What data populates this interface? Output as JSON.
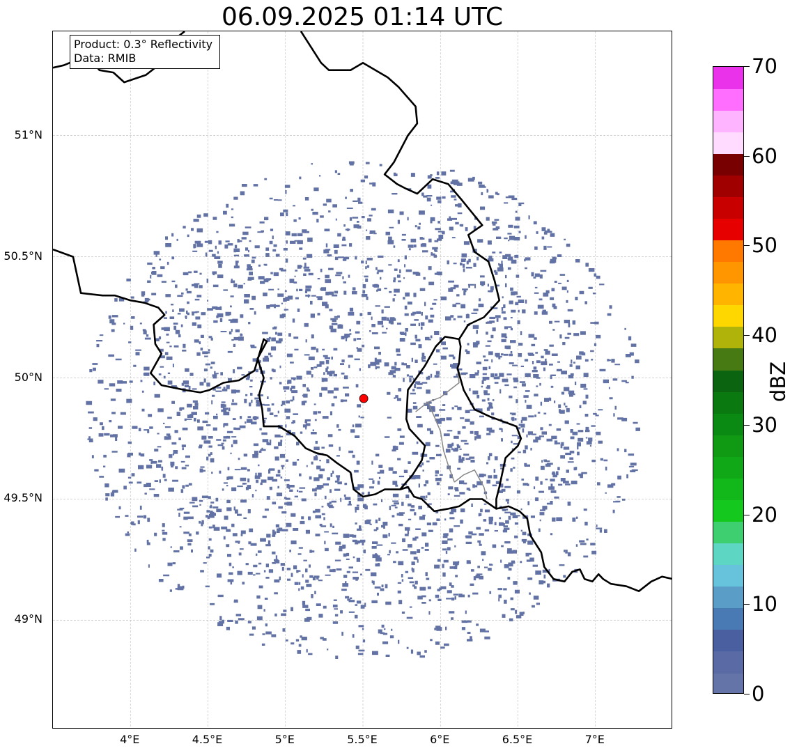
{
  "title": "06.09.2025 01:14 UTC",
  "info_box": {
    "product": "Product: 0.3° Reflectivity",
    "data": "Data: RMIB"
  },
  "map": {
    "lon_range": [
      3.5,
      7.5
    ],
    "lat_range": [
      48.55,
      51.43
    ],
    "gridlines": true,
    "lat_ticks": [
      {
        "value": 51.0,
        "label": "51°N"
      },
      {
        "value": 50.5,
        "label": "50.5°N"
      },
      {
        "value": 50.0,
        "label": "50°N"
      },
      {
        "value": 49.5,
        "label": "49.5°N"
      },
      {
        "value": 49.0,
        "label": "49°N"
      }
    ],
    "lon_ticks": [
      {
        "value": 4.0,
        "label": "4°E"
      },
      {
        "value": 4.5,
        "label": "4.5°E"
      },
      {
        "value": 5.0,
        "label": "5°E"
      },
      {
        "value": 5.5,
        "label": "5.5°E"
      },
      {
        "value": 6.0,
        "label": "6°E"
      },
      {
        "value": 6.5,
        "label": "6.5°E"
      },
      {
        "value": 7.0,
        "label": "7°E"
      }
    ],
    "radar_site": {
      "lon": 5.505,
      "lat": 49.915,
      "marker_color": "#ff0000"
    },
    "echo_color": "#6272a4",
    "borders": [
      [
        [
          3.5,
          51.28
        ],
        [
          3.57,
          51.29
        ],
        [
          3.72,
          51.33
        ],
        [
          3.8,
          51.27
        ],
        [
          3.89,
          51.26
        ],
        [
          3.96,
          51.22
        ],
        [
          4.1,
          51.25
        ],
        [
          4.22,
          51.31
        ],
        [
          4.25,
          51.38
        ],
        [
          4.35,
          51.43
        ]
      ],
      [
        [
          3.5,
          50.53
        ],
        [
          3.63,
          50.5
        ],
        [
          3.68,
          50.35
        ],
        [
          3.82,
          50.34
        ],
        [
          3.9,
          50.34
        ],
        [
          4.0,
          50.32
        ],
        [
          4.09,
          50.31
        ],
        [
          4.18,
          50.29
        ],
        [
          4.22,
          50.26
        ],
        [
          4.15,
          50.22
        ],
        [
          4.16,
          50.14
        ],
        [
          4.2,
          50.1
        ],
        [
          4.13,
          50.02
        ],
        [
          4.2,
          49.97
        ],
        [
          4.35,
          49.95
        ],
        [
          4.45,
          49.94
        ],
        [
          4.51,
          49.95
        ],
        [
          4.6,
          49.98
        ],
        [
          4.7,
          49.99
        ],
        [
          4.8,
          50.03
        ],
        [
          4.86,
          50.16
        ],
        [
          4.88,
          50.15
        ],
        [
          4.82,
          50.08
        ],
        [
          4.86,
          50.0
        ],
        [
          4.83,
          49.93
        ],
        [
          4.85,
          49.87
        ],
        [
          4.86,
          49.8
        ],
        [
          4.96,
          49.8
        ],
        [
          5.06,
          49.76
        ],
        [
          5.13,
          49.71
        ],
        [
          5.2,
          49.69
        ],
        [
          5.27,
          49.68
        ],
        [
          5.33,
          49.65
        ],
        [
          5.42,
          49.61
        ],
        [
          5.44,
          49.54
        ],
        [
          5.5,
          49.51
        ],
        [
          5.58,
          49.52
        ],
        [
          5.64,
          49.54
        ],
        [
          5.74,
          49.54
        ],
        [
          5.79,
          49.55
        ],
        [
          5.83,
          49.51
        ],
        [
          5.88,
          49.5
        ],
        [
          5.96,
          49.45
        ],
        [
          6.05,
          49.46
        ],
        [
          6.12,
          49.47
        ],
        [
          6.19,
          49.5
        ],
        [
          6.27,
          49.5
        ],
        [
          6.36,
          49.46
        ],
        [
          6.44,
          49.47
        ],
        [
          6.51,
          49.45
        ],
        [
          6.56,
          49.42
        ],
        [
          6.58,
          49.35
        ],
        [
          6.65,
          49.28
        ],
        [
          6.67,
          49.22
        ],
        [
          6.73,
          49.17
        ],
        [
          6.8,
          49.16
        ],
        [
          6.85,
          49.2
        ],
        [
          6.9,
          49.21
        ],
        [
          6.93,
          49.17
        ],
        [
          6.98,
          49.16
        ],
        [
          7.02,
          49.19
        ],
        [
          7.05,
          49.17
        ],
        [
          7.1,
          49.15
        ],
        [
          7.2,
          49.14
        ],
        [
          7.28,
          49.12
        ],
        [
          7.36,
          49.16
        ],
        [
          7.43,
          49.18
        ],
        [
          7.5,
          49.17
        ]
      ],
      [
        [
          5.74,
          49.54
        ],
        [
          5.82,
          49.6
        ],
        [
          5.88,
          49.66
        ],
        [
          5.9,
          49.72
        ],
        [
          5.8,
          49.79
        ],
        [
          5.78,
          49.83
        ],
        [
          5.79,
          49.95
        ],
        [
          5.9,
          50.05
        ],
        [
          5.97,
          50.13
        ],
        [
          6.03,
          50.17
        ],
        [
          6.12,
          50.16
        ],
        [
          6.13,
          50.13
        ],
        [
          6.12,
          50.06
        ],
        [
          6.11,
          50.04
        ],
        [
          6.15,
          49.95
        ],
        [
          6.22,
          49.87
        ],
        [
          6.32,
          49.84
        ],
        [
          6.49,
          49.8
        ],
        [
          6.52,
          49.75
        ],
        [
          6.5,
          49.72
        ],
        [
          6.42,
          49.67
        ],
        [
          6.38,
          49.55
        ],
        [
          6.36,
          49.5
        ],
        [
          6.36,
          49.46
        ]
      ],
      [
        [
          6.12,
          50.16
        ],
        [
          6.18,
          50.22
        ],
        [
          6.28,
          50.25
        ],
        [
          6.38,
          50.32
        ],
        [
          6.35,
          50.4
        ],
        [
          6.31,
          50.48
        ],
        [
          6.22,
          50.52
        ],
        [
          6.18,
          50.59
        ],
        [
          6.27,
          50.63
        ],
        [
          6.13,
          50.74
        ],
        [
          6.05,
          50.8
        ],
        [
          5.95,
          50.82
        ],
        [
          5.85,
          50.76
        ],
        [
          5.78,
          50.78
        ],
        [
          5.72,
          50.8
        ],
        [
          5.64,
          50.84
        ],
        [
          5.7,
          50.89
        ],
        [
          5.79,
          51.0
        ],
        [
          5.85,
          51.05
        ],
        [
          5.84,
          51.12
        ],
        [
          5.73,
          51.2
        ],
        [
          5.66,
          51.24
        ],
        [
          5.5,
          51.3
        ],
        [
          5.42,
          51.27
        ],
        [
          5.28,
          51.27
        ],
        [
          5.23,
          51.3
        ],
        [
          5.1,
          51.43
        ]
      ]
    ],
    "inner_lines": [
      [
        [
          5.84,
          49.86
        ],
        [
          5.92,
          49.9
        ],
        [
          6.0,
          49.92
        ],
        [
          6.06,
          49.95
        ],
        [
          6.12,
          49.98
        ],
        [
          6.11,
          50.04
        ]
      ],
      [
        [
          5.92,
          49.9
        ],
        [
          5.96,
          49.84
        ],
        [
          6.0,
          49.78
        ],
        [
          6.02,
          49.7
        ],
        [
          6.05,
          49.64
        ],
        [
          6.09,
          49.57
        ]
      ],
      [
        [
          6.09,
          49.57
        ],
        [
          6.15,
          49.6
        ],
        [
          6.22,
          49.62
        ],
        [
          6.28,
          49.55
        ],
        [
          6.3,
          49.5
        ]
      ]
    ]
  },
  "colorbar": {
    "label": "dBZ",
    "min": 0,
    "max": 70,
    "ticks": [
      0,
      10,
      20,
      30,
      40,
      50,
      60,
      70
    ],
    "colors": [
      "#6474a8",
      "#5a6aa5",
      "#4a5fa0",
      "#4a7ab3",
      "#5a9ec8",
      "#67c2dc",
      "#5ed6c4",
      "#3ed070",
      "#14c81e",
      "#12b81a",
      "#10a816",
      "#109a14",
      "#0a8a12",
      "#0a7a10",
      "#0a6410",
      "#487a14",
      "#b0b40a",
      "#ffd700",
      "#ffb400",
      "#ff9600",
      "#ff7800",
      "#e60000",
      "#c80000",
      "#a00000",
      "#780000",
      "#ffdcff",
      "#ffb4ff",
      "#ff6eff",
      "#eb32eb"
    ]
  }
}
